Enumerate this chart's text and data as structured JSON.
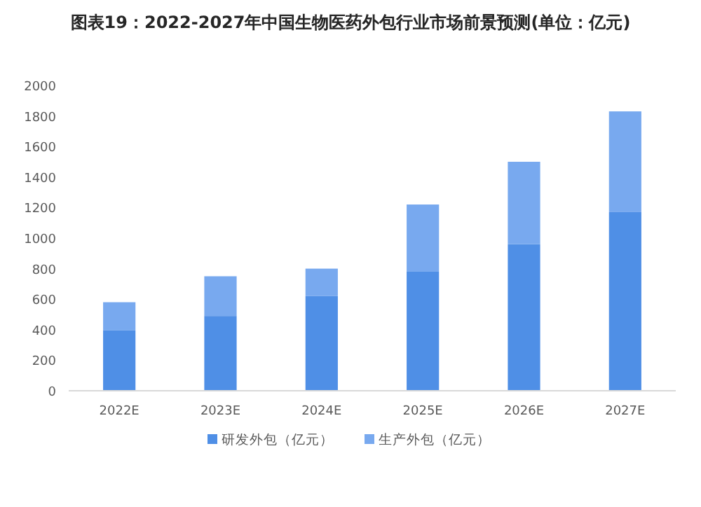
{
  "chart_data": {
    "type": "bar",
    "title": "图表19：2022-2027年中国生物医药外包行业市场前景预测(单位：亿元)",
    "categories": [
      "2022E",
      "2023E",
      "2024E",
      "2025E",
      "2026E",
      "2027E"
    ],
    "series": [
      {
        "name": "研发外包（亿元）",
        "color": "#4f8fe6",
        "values": [
          395,
          490,
          620,
          780,
          960,
          1170
        ]
      },
      {
        "name": "生产外包（亿元）",
        "color": "#78a9ef",
        "values": [
          185,
          260,
          180,
          440,
          540,
          660
        ]
      }
    ],
    "stacked": true,
    "ylim": [
      0,
      2000
    ],
    "yticks": [
      0,
      200,
      400,
      600,
      800,
      1000,
      1200,
      1400,
      1600,
      1800,
      2000
    ],
    "grid": false,
    "legend": "bottom"
  }
}
